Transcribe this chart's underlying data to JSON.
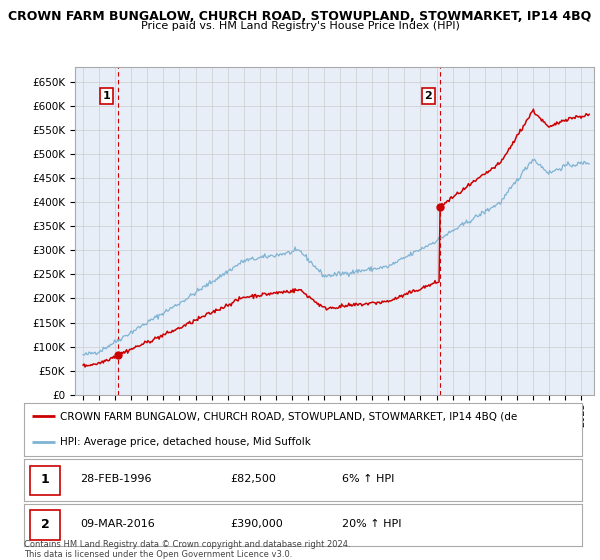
{
  "title": "CROWN FARM BUNGALOW, CHURCH ROAD, STOWUPLAND, STOWMARKET, IP14 4BQ",
  "subtitle": "Price paid vs. HM Land Registry's House Price Index (HPI)",
  "ylabel_ticks": [
    "£0",
    "£50K",
    "£100K",
    "£150K",
    "£200K",
    "£250K",
    "£300K",
    "£350K",
    "£400K",
    "£450K",
    "£500K",
    "£550K",
    "£600K",
    "£650K"
  ],
  "ytick_values": [
    0,
    50000,
    100000,
    150000,
    200000,
    250000,
    300000,
    350000,
    400000,
    450000,
    500000,
    550000,
    600000,
    650000
  ],
  "ylim": [
    0,
    680000
  ],
  "sale1": {
    "date_num": 1996.16,
    "price": 82500,
    "label": "1",
    "date_str": "28-FEB-1996",
    "price_str": "£82,500",
    "hpi_str": "6% ↑ HPI"
  },
  "sale2": {
    "date_num": 2016.19,
    "price": 390000,
    "label": "2",
    "date_str": "09-MAR-2016",
    "price_str": "£390,000",
    "hpi_str": "20% ↑ HPI"
  },
  "red_line_color": "#cc0000",
  "blue_line_color": "#7fb3d3",
  "grid_color": "#cccccc",
  "dashed_vline_color": "#cc0000",
  "plot_bg_color": "#e8eef8",
  "legend_label_red": "CROWN FARM BUNGALOW, CHURCH ROAD, STOWUPLAND, STOWMARKET, IP14 4BQ (de",
  "legend_label_blue": "HPI: Average price, detached house, Mid Suffolk",
  "copyright_text": "Contains HM Land Registry data © Crown copyright and database right 2024.\nThis data is licensed under the Open Government Licence v3.0.",
  "xlim_start": 1993.5,
  "xlim_end": 2025.8,
  "xtick_years": [
    1994,
    1995,
    1996,
    1997,
    1998,
    1999,
    2000,
    2001,
    2002,
    2003,
    2004,
    2005,
    2006,
    2007,
    2008,
    2009,
    2010,
    2011,
    2012,
    2013,
    2014,
    2015,
    2016,
    2017,
    2018,
    2019,
    2020,
    2021,
    2022,
    2023,
    2024,
    2025
  ]
}
